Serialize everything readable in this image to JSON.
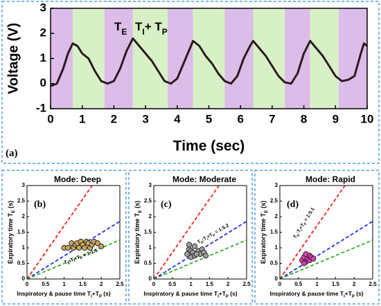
{
  "chart_data": [
    {
      "type": "line",
      "panel_label": "(a)",
      "xlabel": "Time (sec)",
      "ylabel": "Voltage (V)",
      "annotations": [
        [
          "T",
          "E"
        ],
        [
          "T",
          "I",
          "+ T",
          "P"
        ]
      ],
      "annotation_colors": [
        "#9a3fc0",
        "#6cc83c"
      ],
      "xlim": [
        0,
        10
      ],
      "ylim": [
        -1,
        3
      ],
      "xticks": [
        0,
        1,
        2,
        3,
        4,
        5,
        6,
        7,
        8,
        9,
        10
      ],
      "yticks": [
        -1,
        0,
        1,
        2,
        3
      ],
      "regions": [
        {
          "xlim": [
            0,
            0.7
          ],
          "color": "#dcbce8"
        },
        {
          "xlim": [
            0.7,
            1.7
          ],
          "color": "#d8f0c6"
        },
        {
          "xlim": [
            1.7,
            2.6
          ],
          "color": "#dcbce8"
        },
        {
          "xlim": [
            2.6,
            3.7
          ],
          "color": "#d8f0c6"
        },
        {
          "xlim": [
            3.7,
            4.5
          ],
          "color": "#dcbce8"
        },
        {
          "xlim": [
            4.5,
            5.5
          ],
          "color": "#d8f0c6"
        },
        {
          "xlim": [
            5.5,
            6.4
          ],
          "color": "#dcbce8"
        },
        {
          "xlim": [
            6.4,
            7.4
          ],
          "color": "#d8f0c6"
        },
        {
          "xlim": [
            7.4,
            8.2
          ],
          "color": "#dcbce8"
        },
        {
          "xlim": [
            8.2,
            9.1
          ],
          "color": "#d8f0c6"
        },
        {
          "xlim": [
            9.1,
            10
          ],
          "color": "#dcbce8"
        }
      ],
      "x": [
        0,
        0.2,
        0.4,
        0.55,
        0.7,
        0.85,
        1.0,
        1.2,
        1.4,
        1.6,
        1.8,
        2.0,
        2.2,
        2.4,
        2.6,
        2.8,
        3.0,
        3.2,
        3.4,
        3.6,
        3.8,
        4.0,
        4.2,
        4.4,
        4.5,
        4.7,
        4.9,
        5.1,
        5.3,
        5.5,
        5.7,
        5.9,
        6.1,
        6.3,
        6.4,
        6.6,
        6.8,
        7.0,
        7.2,
        7.4,
        7.6,
        7.8,
        8.0,
        8.2,
        8.4,
        8.6,
        8.8,
        9.0,
        9.2,
        9.4,
        9.6,
        9.8,
        9.9,
        10
      ],
      "series": [
        {
          "color": "#2b1a1c",
          "values": [
            -0.1,
            0,
            0.6,
            1.2,
            1.6,
            1.5,
            1.2,
            1.0,
            0.5,
            0.1,
            0,
            0.1,
            0.6,
            1.3,
            1.8,
            1.5,
            1.2,
            0.9,
            0.5,
            0.1,
            0,
            0.2,
            0.8,
            1.4,
            1.7,
            1.5,
            1.1,
            0.8,
            0.4,
            0.1,
            0,
            0.3,
            1.0,
            1.5,
            1.7,
            1.4,
            1.1,
            0.7,
            0.3,
            0.05,
            0,
            0.4,
            1.2,
            1.7,
            1.4,
            1.1,
            0.7,
            0.3,
            0.1,
            0.15,
            0.3,
            1.2,
            1.6,
            1.5
          ]
        }
      ]
    },
    {
      "type": "scatter",
      "title": "Mode: Deep",
      "title_color": "#6cc83c",
      "panel_label": "(b)",
      "xlabel": [
        "Inspiratory & pause time T",
        "I",
        "+T",
        "P",
        " (s)"
      ],
      "ylabel": [
        "Expiratory time T",
        "E",
        " (s)"
      ],
      "ratio_label": [
        "T",
        "E",
        ":T",
        "I",
        "+T",
        "P",
        " = 1:1.5"
      ],
      "ratio_color": "#3fae2a",
      "xlim": [
        0,
        2.5
      ],
      "ylim": [
        0,
        3
      ],
      "xticks": [
        0.0,
        0.5,
        1.0,
        1.5,
        2.0,
        2.5
      ],
      "yticks": [
        0.0,
        0.5,
        1.0,
        1.5,
        2.0,
        2.5,
        3.0
      ],
      "ref_lines": [
        {
          "slope": 1.71,
          "color": "#f02020"
        },
        {
          "slope": 0.74,
          "color": "#2030e0"
        },
        {
          "slope": 0.5,
          "color": "#30b030"
        }
      ],
      "color": "#c9a65a",
      "x": [
        1.0,
        1.1,
        1.2,
        1.25,
        1.3,
        1.35,
        1.4,
        1.45,
        1.5,
        1.55,
        1.6,
        1.65,
        1.7,
        1.75,
        1.8,
        1.9,
        2.0
      ],
      "values": [
        1.0,
        1.0,
        1.15,
        1.0,
        1.1,
        1.15,
        1.0,
        1.2,
        1.1,
        1.0,
        1.2,
        1.15,
        1.0,
        1.1,
        1.2,
        1.15,
        1.05
      ]
    },
    {
      "type": "scatter",
      "title": "Mode: Moderate",
      "title_color": "#1f7ad0",
      "panel_label": "(c)",
      "xlabel": [
        "Inspiratory & pause time T",
        "I",
        "+T",
        "P",
        " (s)"
      ],
      "ylabel": [
        "Expiratory time T",
        "E",
        " (s)"
      ],
      "ratio_label": [
        "T",
        "E",
        ":T",
        "I",
        "+T",
        "P",
        " = 1:5.2"
      ],
      "ratio_color": "#2030c0",
      "xlim": [
        0,
        2.5
      ],
      "ylim": [
        0,
        3
      ],
      "xticks": [
        0.0,
        0.5,
        1.0,
        1.5,
        2.0,
        2.5
      ],
      "yticks": [
        0.0,
        0.5,
        1.0,
        1.5,
        2.0,
        2.5,
        3.0
      ],
      "ref_lines": [
        {
          "slope": 1.71,
          "color": "#f02020"
        },
        {
          "slope": 0.74,
          "color": "#2030e0"
        },
        {
          "slope": 0.5,
          "color": "#30b030"
        }
      ],
      "color": "#a0a0a0",
      "x": [
        0.9,
        0.95,
        1.0,
        1.0,
        1.05,
        1.1,
        1.1,
        1.2,
        1.25,
        1.3,
        1.35,
        1.4,
        0.95,
        1.15
      ],
      "values": [
        0.8,
        0.95,
        0.7,
        0.9,
        0.85,
        1.05,
        0.75,
        0.9,
        0.8,
        0.95,
        0.85,
        0.75,
        1.1,
        0.8
      ]
    },
    {
      "type": "scatter",
      "title": "Mode: Rapid",
      "title_color": "#f02020",
      "panel_label": "(d)",
      "xlabel": [
        "Inspiratory & pause time T",
        "I",
        "+T",
        "P",
        " (s)"
      ],
      "ylabel": [
        "Expiratory time T",
        "E",
        " (s)"
      ],
      "ratio_label": [
        "T",
        "E",
        ":T",
        "I",
        "+T",
        "P",
        " = 1:5.1"
      ],
      "ratio_color": "#f02020",
      "xlim": [
        0,
        2.5
      ],
      "ylim": [
        0,
        3
      ],
      "xticks": [
        0.0,
        0.5,
        1.0,
        1.5,
        2.0,
        2.5
      ],
      "yticks": [
        0.0,
        0.5,
        1.0,
        1.5,
        2.0,
        2.5,
        3.0
      ],
      "ref_lines": [
        {
          "slope": 1.71,
          "color": "#f02020"
        },
        {
          "slope": 0.74,
          "color": "#2030e0"
        },
        {
          "slope": 0.5,
          "color": "#30b030"
        }
      ],
      "color": "#e040b0",
      "x": [
        0.6,
        0.65,
        0.7,
        0.7,
        0.75,
        0.8,
        0.8,
        0.85,
        0.9,
        0.65
      ],
      "values": [
        0.6,
        0.7,
        0.55,
        0.8,
        0.65,
        0.6,
        0.75,
        0.7,
        0.65,
        0.5
      ]
    }
  ]
}
